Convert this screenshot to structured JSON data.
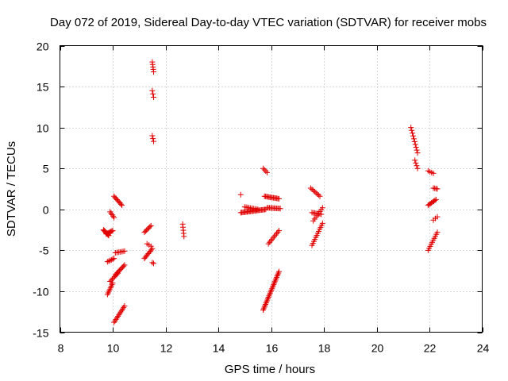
{
  "chart_data": {
    "type": "scatter",
    "title": "Day 072 of 2019, Sidereal Day-to-day VTEC variation (SDTVAR) for receiver mobs",
    "xlabel": "GPS time / hours",
    "ylabel": "SDTVAR / TECUs",
    "xlim": [
      8,
      24
    ],
    "ylim": [
      -15,
      20
    ],
    "xticks": [
      8,
      10,
      12,
      14,
      16,
      18,
      20,
      22,
      24
    ],
    "yticks": [
      -15,
      -10,
      -5,
      0,
      5,
      10,
      15,
      20
    ],
    "grid": true,
    "marker": "plus",
    "color": "#e00000",
    "segments": [
      {
        "x0": 9.65,
        "x1": 9.85,
        "y0": -2.5,
        "y1": -3.2,
        "n": 10
      },
      {
        "x0": 9.75,
        "x1": 10.0,
        "y0": -3.0,
        "y1": -2.6,
        "n": 8
      },
      {
        "x0": 9.9,
        "x1": 10.05,
        "y0": -0.3,
        "y1": -1.0,
        "n": 5
      },
      {
        "x0": 9.8,
        "x1": 10.05,
        "y0": -6.4,
        "y1": -6.0,
        "n": 6
      },
      {
        "x0": 10.05,
        "x1": 10.35,
        "y0": 1.6,
        "y1": 0.5,
        "n": 9
      },
      {
        "x0": 10.1,
        "x1": 10.45,
        "y0": -5.3,
        "y1": -5.1,
        "n": 7
      },
      {
        "x0": 9.8,
        "x1": 10.0,
        "y0": -10.4,
        "y1": -9.0,
        "n": 8
      },
      {
        "x0": 9.9,
        "x1": 10.2,
        "y0": -8.8,
        "y1": -7.8,
        "n": 8
      },
      {
        "x0": 10.1,
        "x1": 10.45,
        "y0": -8.0,
        "y1": -6.8,
        "n": 10
      },
      {
        "x0": 10.05,
        "x1": 10.45,
        "y0": -13.8,
        "y1": -11.8,
        "n": 12
      },
      {
        "x0": 11.2,
        "x1": 11.45,
        "y0": -2.8,
        "y1": -2.0,
        "n": 7
      },
      {
        "x0": 11.2,
        "x1": 11.5,
        "y0": -6.0,
        "y1": -4.8,
        "n": 9
      },
      {
        "x0": 11.3,
        "x1": 11.45,
        "y0": -4.2,
        "y1": -4.5,
        "n": 3
      },
      {
        "x0": 11.5,
        "x1": 11.55,
        "y0": -6.5,
        "y1": -6.6,
        "n": 2
      },
      {
        "x0": 11.5,
        "x1": 11.55,
        "y0": 18.0,
        "y1": 16.8,
        "n": 5
      },
      {
        "x0": 11.5,
        "x1": 11.55,
        "y0": 14.5,
        "y1": 13.7,
        "n": 3
      },
      {
        "x0": 11.5,
        "x1": 11.55,
        "y0": 9.0,
        "y1": 8.3,
        "n": 3
      },
      {
        "x0": 12.65,
        "x1": 12.7,
        "y0": -1.8,
        "y1": -3.3,
        "n": 5
      },
      {
        "x0": 14.85,
        "x1": 14.85,
        "y0": 1.8,
        "y1": 1.8,
        "n": 1
      },
      {
        "x0": 14.85,
        "x1": 15.8,
        "y0": -0.4,
        "y1": 0.0,
        "n": 24
      },
      {
        "x0": 15.0,
        "x1": 15.5,
        "y0": 0.3,
        "y1": 0.0,
        "n": 10
      },
      {
        "x0": 15.75,
        "x1": 16.3,
        "y0": 1.6,
        "y1": 1.3,
        "n": 14
      },
      {
        "x0": 15.85,
        "x1": 16.35,
        "y0": 0.2,
        "y1": 0.1,
        "n": 12
      },
      {
        "x0": 15.7,
        "x1": 15.85,
        "y0": 5.0,
        "y1": 4.5,
        "n": 4
      },
      {
        "x0": 15.9,
        "x1": 16.3,
        "y0": -4.2,
        "y1": -2.6,
        "n": 10
      },
      {
        "x0": 15.7,
        "x1": 16.3,
        "y0": -12.3,
        "y1": -7.6,
        "n": 28
      },
      {
        "x0": 17.5,
        "x1": 17.85,
        "y0": 2.6,
        "y1": 1.6,
        "n": 8
      },
      {
        "x0": 17.55,
        "x1": 17.9,
        "y0": -0.4,
        "y1": -0.6,
        "n": 8
      },
      {
        "x0": 17.6,
        "x1": 17.95,
        "y0": -1.4,
        "y1": 0.2,
        "n": 8
      },
      {
        "x0": 17.55,
        "x1": 17.95,
        "y0": -4.4,
        "y1": -1.7,
        "n": 12
      },
      {
        "x0": 21.3,
        "x1": 21.55,
        "y0": 10.0,
        "y1": 6.9,
        "n": 10
      },
      {
        "x0": 21.45,
        "x1": 21.55,
        "y0": 6.0,
        "y1": 5.0,
        "n": 4
      },
      {
        "x0": 21.95,
        "x1": 22.15,
        "y0": 4.7,
        "y1": 4.4,
        "n": 4
      },
      {
        "x0": 21.95,
        "x1": 22.25,
        "y0": 0.5,
        "y1": 1.2,
        "n": 8
      },
      {
        "x0": 22.15,
        "x1": 22.3,
        "y0": 2.6,
        "y1": 2.5,
        "n": 4
      },
      {
        "x0": 22.15,
        "x1": 22.3,
        "y0": -1.3,
        "y1": -0.9,
        "n": 3
      },
      {
        "x0": 21.95,
        "x1": 22.3,
        "y0": -5.0,
        "y1": -2.8,
        "n": 10
      }
    ]
  }
}
